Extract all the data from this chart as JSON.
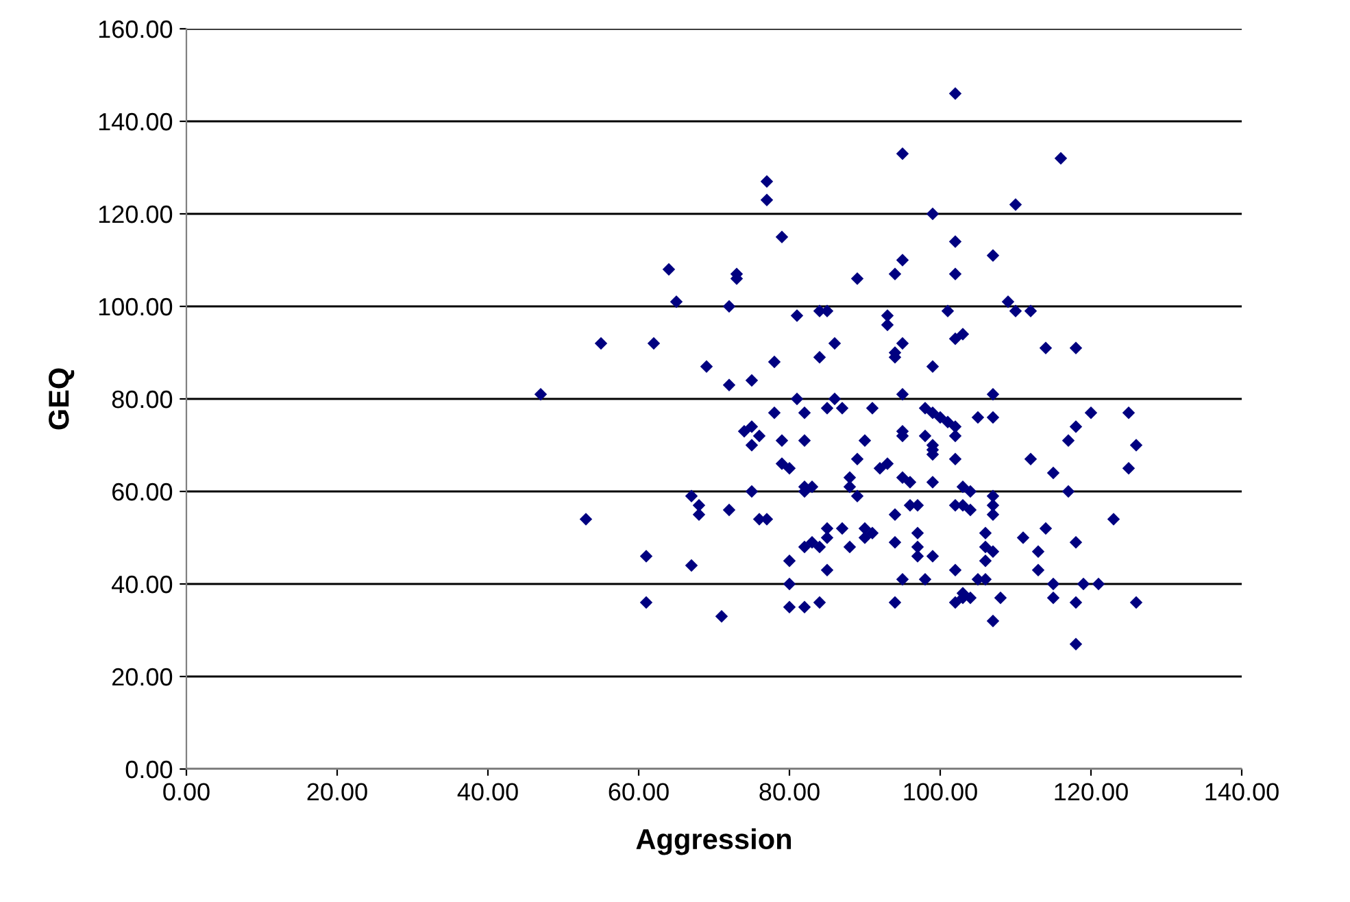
{
  "chart_data": {
    "type": "scatter",
    "xlabel": "Aggression",
    "ylabel": "GEQ",
    "marker": "diamond",
    "grid": "y",
    "xlim": [
      0,
      140
    ],
    "ylim": [
      0,
      160
    ],
    "xticks": [
      {
        "value": 0,
        "label": "0.00"
      },
      {
        "value": 20,
        "label": "20.00"
      },
      {
        "value": 40,
        "label": "40.00"
      },
      {
        "value": 60,
        "label": "60.00"
      },
      {
        "value": 80,
        "label": "80.00"
      },
      {
        "value": 100,
        "label": "100.00"
      },
      {
        "value": 120,
        "label": "120.00"
      },
      {
        "value": 140,
        "label": "140.00"
      }
    ],
    "yticks": [
      {
        "value": 0,
        "label": "0.00"
      },
      {
        "value": 20,
        "label": "20.00"
      },
      {
        "value": 40,
        "label": "40.00"
      },
      {
        "value": 60,
        "label": "60.00"
      },
      {
        "value": 80,
        "label": "80.00"
      },
      {
        "value": 100,
        "label": "100.00"
      },
      {
        "value": 120,
        "label": "120.00"
      },
      {
        "value": 140,
        "label": "140.00"
      },
      {
        "value": 160,
        "label": "160.00"
      }
    ],
    "series": [
      {
        "color": "#000080",
        "x": [
          47,
          53,
          55,
          61,
          61,
          62,
          64,
          65,
          67,
          67,
          68,
          68,
          69,
          71,
          72,
          72,
          72,
          73,
          73,
          74,
          75,
          75,
          75,
          75,
          76,
          76,
          77,
          77,
          77,
          78,
          78,
          79,
          79,
          79,
          80,
          80,
          80,
          80,
          81,
          81,
          82,
          82,
          82,
          82,
          82,
          82,
          83,
          83,
          84,
          84,
          84,
          84,
          85,
          85,
          85,
          85,
          85,
          86,
          86,
          87,
          87,
          88,
          88,
          88,
          89,
          89,
          89,
          90,
          90,
          90,
          91,
          91,
          92,
          93,
          93,
          93,
          94,
          94,
          94,
          94,
          94,
          94,
          95,
          95,
          95,
          95,
          95,
          95,
          95,
          95,
          96,
          96,
          97,
          97,
          97,
          97,
          98,
          98,
          98,
          99,
          99,
          99,
          99,
          99,
          99,
          99,
          99,
          100,
          101,
          101,
          102,
          102,
          102,
          102,
          102,
          102,
          102,
          102,
          102,
          102,
          103,
          103,
          103,
          103,
          103,
          104,
          104,
          104,
          105,
          105,
          106,
          106,
          106,
          106,
          107,
          107,
          107,
          107,
          107,
          107,
          107,
          107,
          108,
          109,
          110,
          110,
          111,
          112,
          112,
          113,
          113,
          114,
          114,
          115,
          115,
          115,
          116,
          117,
          117,
          118,
          118,
          118,
          118,
          118,
          119,
          120,
          121,
          123,
          125,
          125,
          126,
          126
        ],
        "values": [
          81,
          54,
          92,
          46,
          36,
          92,
          108,
          101,
          59,
          44,
          57,
          55,
          87,
          33,
          100,
          83,
          56,
          107,
          106,
          73,
          74,
          70,
          84,
          60,
          72,
          54,
          127,
          123,
          54,
          88,
          77,
          115,
          71,
          66,
          65,
          45,
          40,
          35,
          98,
          80,
          77,
          71,
          61,
          60,
          48,
          35,
          61,
          49,
          99,
          89,
          48,
          36,
          99,
          78,
          52,
          50,
          43,
          92,
          80,
          78,
          52,
          63,
          61,
          48,
          106,
          67,
          59,
          71,
          52,
          50,
          78,
          51,
          65,
          98,
          96,
          66,
          107,
          90,
          89,
          55,
          49,
          36,
          133,
          110,
          92,
          81,
          73,
          72,
          63,
          41,
          62,
          57,
          57,
          51,
          48,
          46,
          78,
          72,
          41,
          120,
          87,
          77,
          70,
          69,
          68,
          62,
          46,
          76,
          99,
          75,
          146,
          114,
          107,
          93,
          74,
          72,
          67,
          57,
          43,
          36,
          94,
          61,
          57,
          38,
          37,
          60,
          56,
          37,
          76,
          41,
          51,
          48,
          45,
          41,
          111,
          81,
          76,
          59,
          57,
          55,
          47,
          32,
          37,
          101,
          122,
          99,
          50,
          99,
          67,
          47,
          43,
          91,
          52,
          64,
          40,
          37,
          132,
          71,
          60,
          91,
          74,
          49,
          36,
          27,
          40,
          77,
          40,
          54,
          77,
          65,
          70,
          36
        ]
      }
    ]
  }
}
